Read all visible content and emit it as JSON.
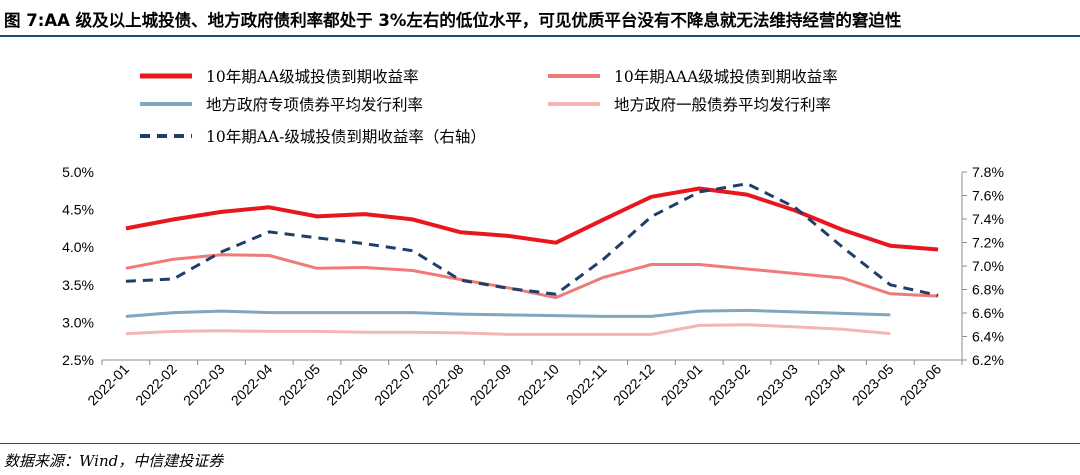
{
  "title": "图 7:AA 级及以上城投债、地方政府债利率都处于 3%左右的低位水平，可见优质平台没有不降息就无法维持经营的窘迫性",
  "source": "数据来源：Wind，中信建投证券",
  "chart_data": {
    "type": "line",
    "categories": [
      "2022-01",
      "2022-02",
      "2022-03",
      "2022-04",
      "2022-05",
      "2022-06",
      "2022-07",
      "2022-08",
      "2022-09",
      "2022-10",
      "2022-11",
      "2022-12",
      "2023-01",
      "2023-02",
      "2023-03",
      "2023-04",
      "2023-05",
      "2023-06"
    ],
    "y_left": {
      "range": [
        2.5,
        5.0
      ],
      "ticks": [
        "2.5%",
        "3.0%",
        "3.5%",
        "4.0%",
        "4.5%",
        "5.0%"
      ],
      "tick_values": [
        2.5,
        3.0,
        3.5,
        4.0,
        4.5,
        5.0
      ]
    },
    "y_right": {
      "range": [
        6.2,
        7.8
      ],
      "ticks": [
        "6.2%",
        "6.4%",
        "6.6%",
        "6.8%",
        "7.0%",
        "7.2%",
        "7.4%",
        "7.6%",
        "7.8%"
      ],
      "tick_values": [
        6.2,
        6.4,
        6.6,
        6.8,
        7.0,
        7.2,
        7.4,
        7.6,
        7.8
      ]
    },
    "grid": false,
    "legend_position": "top",
    "series": [
      {
        "name": "10年期AA级城投债到期收益率",
        "axis": "left",
        "color": "#e8171d",
        "style": "solid",
        "width": 4,
        "values": [
          4.25,
          4.37,
          4.47,
          4.53,
          4.41,
          4.44,
          4.37,
          4.2,
          4.15,
          4.06,
          4.37,
          4.67,
          4.78,
          4.7,
          4.49,
          4.23,
          4.02,
          3.97
        ]
      },
      {
        "name": "10年期AAA级城投债到期收益率",
        "axis": "left",
        "color": "#f07a78",
        "style": "solid",
        "width": 3,
        "values": [
          3.72,
          3.84,
          3.9,
          3.89,
          3.72,
          3.73,
          3.69,
          3.57,
          3.46,
          3.33,
          3.6,
          3.77,
          3.77,
          3.71,
          3.65,
          3.59,
          3.38,
          3.35
        ]
      },
      {
        "name": "地方政府专项债券平均发行利率",
        "axis": "left",
        "color": "#7fa7bd",
        "style": "solid",
        "width": 3,
        "values": [
          3.08,
          3.13,
          3.15,
          3.13,
          3.13,
          3.13,
          3.13,
          3.11,
          3.1,
          3.09,
          3.08,
          3.08,
          3.15,
          3.16,
          3.14,
          3.12,
          3.1,
          null
        ]
      },
      {
        "name": "地方政府一般债券平均发行利率",
        "axis": "left",
        "color": "#f4b6b3",
        "style": "solid",
        "width": 3,
        "values": [
          2.85,
          2.88,
          2.89,
          2.88,
          2.88,
          2.87,
          2.87,
          2.86,
          2.84,
          2.84,
          2.84,
          2.84,
          2.96,
          2.97,
          2.94,
          2.91,
          2.85,
          null
        ]
      },
      {
        "name": "10年期AA-级城投债到期收益率（右轴）",
        "axis": "right",
        "color": "#1f3f6b",
        "style": "dashed",
        "width": 3,
        "values": [
          6.87,
          6.89,
          7.12,
          7.29,
          7.24,
          7.19,
          7.13,
          6.88,
          6.81,
          6.76,
          7.06,
          7.42,
          7.63,
          7.7,
          7.5,
          7.16,
          6.84,
          6.75
        ]
      }
    ]
  }
}
